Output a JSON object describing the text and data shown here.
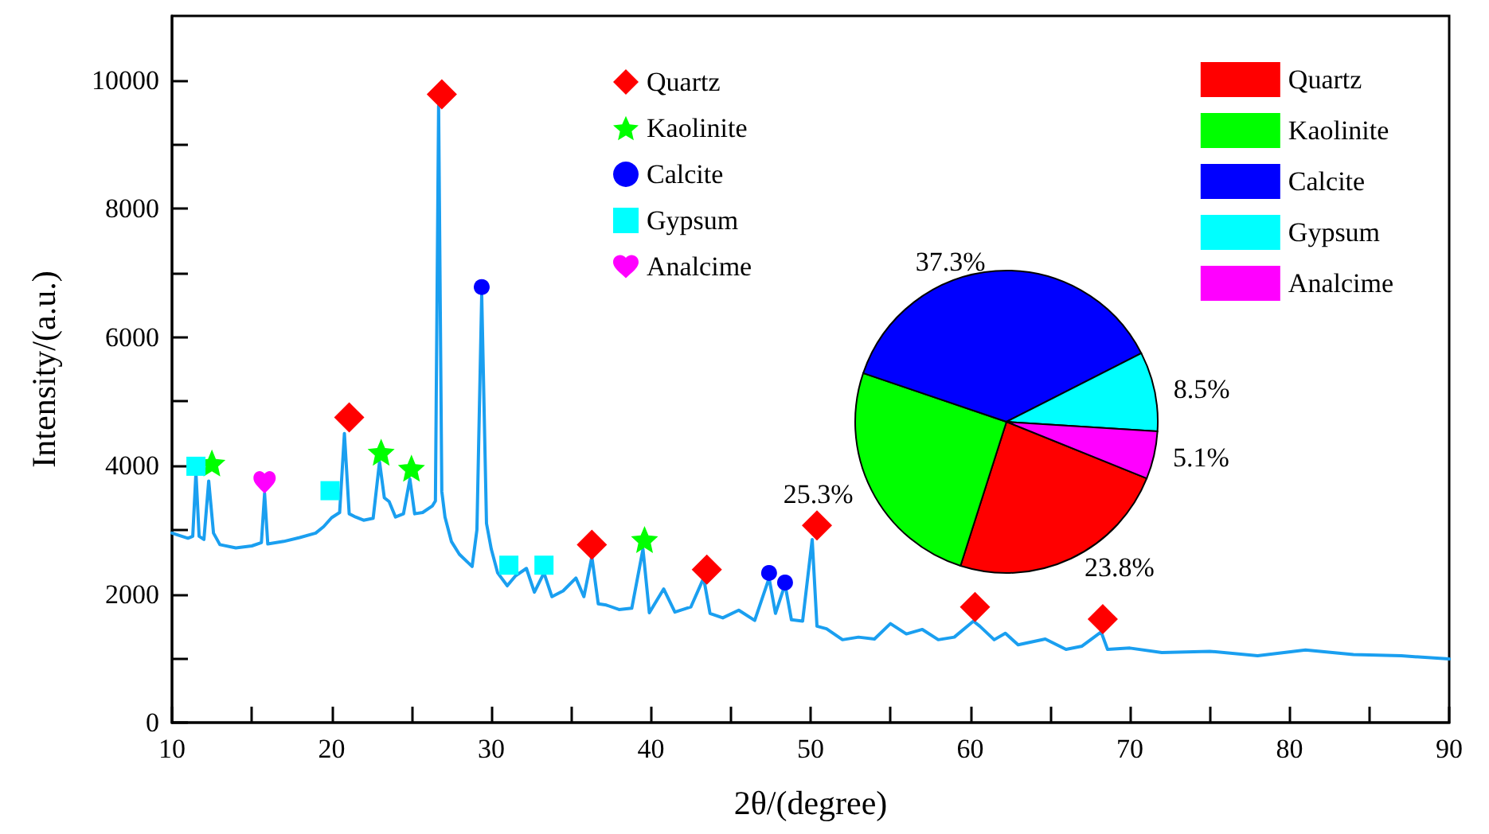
{
  "chart_data": [
    {
      "type": "line",
      "xlabel": "2θ/(degree)",
      "ylabel": "Intensity/(a.u.)",
      "xlim": [
        10,
        90
      ],
      "xticks": [
        10,
        20,
        30,
        40,
        50,
        60,
        70,
        80,
        90
      ],
      "ylim": [
        0,
        11000
      ],
      "yticks": [
        0,
        2000,
        4000,
        6000,
        8000,
        10000
      ],
      "legend": "top",
      "series": [
        {
          "type": "line",
          "color": "#1a9ff0",
          "marker": "none",
          "x": [
            10,
            11,
            11.3,
            11.5,
            11.7,
            12,
            12.3,
            12.6,
            13,
            14,
            15,
            15.6,
            15.8,
            16,
            17,
            18,
            19,
            19.5,
            20,
            20.5,
            20.8,
            21.1,
            21.5,
            22,
            22.6,
            23,
            23.3,
            23.6,
            24,
            24.5,
            24.9,
            25.2,
            25.7,
            26.3,
            26.5,
            26.7,
            26.9,
            27.1,
            27.5,
            28,
            28.5,
            28.8,
            29.1,
            29.4,
            29.7,
            30,
            30.4,
            31,
            31.5,
            32.2,
            32.7,
            33.3,
            33.8,
            34.5,
            35.3,
            35.8,
            36.3,
            36.7,
            37.2,
            38,
            38.8,
            39.5,
            39.9,
            40.8,
            41.5,
            42.5,
            43.3,
            43.7,
            44.5,
            45.5,
            46.5,
            47.4,
            47.8,
            48.4,
            48.8,
            49.5,
            50.1,
            50.4,
            51,
            52,
            53,
            54,
            55,
            56,
            57,
            58,
            59,
            60.2,
            60.6,
            61.5,
            62.2,
            63,
            64.7,
            66,
            67,
            68.2,
            68.6,
            70,
            72,
            75,
            78,
            81,
            84,
            87,
            90
          ],
          "values": [
            2950,
            2870,
            2900,
            3890,
            2900,
            2850,
            3760,
            2950,
            2770,
            2720,
            2750,
            2800,
            3570,
            2780,
            2820,
            2880,
            2950,
            3050,
            3190,
            3270,
            4500,
            3250,
            3200,
            3150,
            3180,
            4060,
            3500,
            3440,
            3200,
            3250,
            3790,
            3250,
            3270,
            3370,
            3450,
            9600,
            3600,
            3200,
            2820,
            2620,
            2500,
            2430,
            3000,
            6660,
            3100,
            2700,
            2330,
            2130,
            2280,
            2400,
            2030,
            2330,
            1960,
            2050,
            2250,
            1960,
            2580,
            1850,
            1830,
            1760,
            1780,
            2700,
            1710,
            2080,
            1720,
            1800,
            2250,
            1700,
            1630,
            1750,
            1590,
            2250,
            1700,
            2150,
            1600,
            1580,
            2850,
            1500,
            1460,
            1290,
            1330,
            1300,
            1540,
            1380,
            1450,
            1290,
            1330,
            1580,
            1500,
            1290,
            1390,
            1210,
            1300,
            1140,
            1190,
            1410,
            1140,
            1160,
            1090,
            1110,
            1040,
            1130,
            1060,
            1040,
            990
          ]
        },
        {
          "type": "scatter",
          "name": "Quartz",
          "color": "#ff0000",
          "marker": "diamond",
          "x": [
            21.1,
            26.9,
            36.3,
            43.5,
            50.4,
            60.3,
            68.3
          ],
          "values": [
            4750,
            9780,
            2770,
            2380,
            3070,
            1800,
            1610
          ]
        },
        {
          "type": "scatter",
          "name": "Kaolinite",
          "color": "#00ff00",
          "marker": "star",
          "x": [
            12.5,
            23.1,
            25.0,
            39.6
          ],
          "values": [
            4040,
            4210,
            3960,
            2850
          ]
        },
        {
          "type": "scatter",
          "name": "Calcite",
          "color": "#0000ff",
          "marker": "circle",
          "x": [
            29.4,
            47.4,
            48.4
          ],
          "values": [
            6780,
            2330,
            2180
          ]
        },
        {
          "type": "scatter",
          "name": "Gypsum",
          "color": "#00ffff",
          "marker": "square",
          "x": [
            11.5,
            19.9,
            31.1,
            33.3
          ],
          "values": [
            3990,
            3610,
            2450,
            2450
          ]
        },
        {
          "type": "scatter",
          "name": "Analcime",
          "color": "#ff00ff",
          "x": [
            15.8
          ],
          "values": [
            3740
          ]
        }
      ]
    },
    {
      "type": "pie",
      "categories": [
        "Quartz",
        "Kaolinite",
        "Calcite",
        "Gypsum",
        "Analcime"
      ],
      "values": [
        23.8,
        25.3,
        37.3,
        8.5,
        5.1
      ],
      "colors": [
        "#ff0000",
        "#00ff00",
        "#0000ff",
        "#00ffff",
        "#ff00ff"
      ],
      "value_labels": [
        "23.8%",
        "25.3%",
        "37.3%",
        "8.5%",
        "5.1%"
      ],
      "legend": "top right"
    }
  ]
}
